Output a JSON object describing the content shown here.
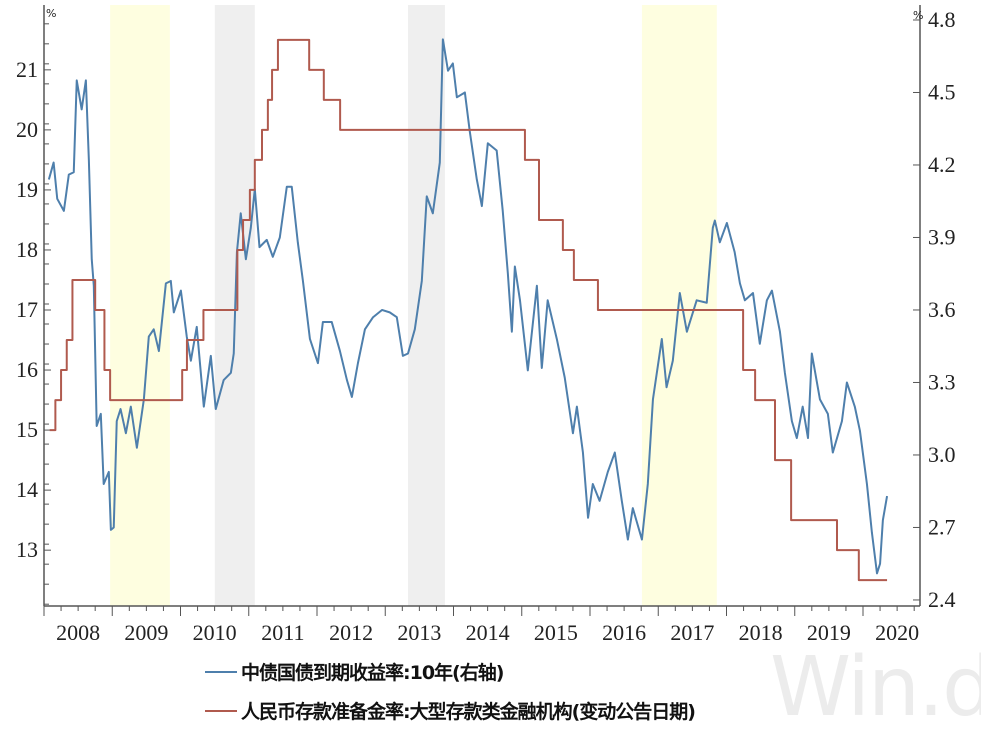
{
  "chart_data": {
    "type": "line",
    "xlim": [
      "2008-01-01",
      "2020-11-01"
    ],
    "x_tick_labels": [
      "2008",
      "2009",
      "2010",
      "2011",
      "2012",
      "2013",
      "2014",
      "2015",
      "2016",
      "2017",
      "2018",
      "2019",
      "2020"
    ],
    "left_axis": {
      "unit": "%",
      "ylim": [
        12.07,
        22.08
      ],
      "tick_labels": [
        "13",
        "14",
        "15",
        "16",
        "17",
        "18",
        "19",
        "20",
        "21"
      ]
    },
    "right_axis": {
      "unit": "%",
      "ylim": [
        2.375,
        4.862
      ],
      "tick_labels": [
        "2.4",
        "2.7",
        "3.0",
        "3.3",
        "3.6",
        "3.9",
        "4.2",
        "4.5",
        "4.8"
      ]
    },
    "grid": false,
    "legend_position": "bottom",
    "shaded_periods": [
      {
        "start": "2008-12-20",
        "end": "2009-11-05",
        "color": "#fefee0"
      },
      {
        "start": "2010-07-02",
        "end": "2011-02-03",
        "color": "#efefef"
      },
      {
        "start": "2013-05-01",
        "end": "2013-11-16",
        "color": "#efefef"
      },
      {
        "start": "2016-10-05",
        "end": "2017-11-10",
        "color": "#fefee0"
      }
    ],
    "series": [
      {
        "name": "中债国债到期收益率:10年(右轴)",
        "axis": "right",
        "color": "#4e7fac",
        "points": [
          [
            "2008-01-27",
            4.14
          ],
          [
            "2008-02-22",
            4.21
          ],
          [
            "2008-03-11",
            4.06
          ],
          [
            "2008-04-16",
            4.01
          ],
          [
            "2008-05-12",
            4.16
          ],
          [
            "2008-06-08",
            4.17
          ],
          [
            "2008-06-24",
            4.55
          ],
          [
            "2008-07-20",
            4.43
          ],
          [
            "2008-08-12",
            4.55
          ],
          [
            "2008-08-28",
            4.22
          ],
          [
            "2008-09-13",
            3.81
          ],
          [
            "2008-09-24",
            3.7
          ],
          [
            "2008-10-09",
            3.12
          ],
          [
            "2008-10-31",
            3.17
          ],
          [
            "2008-11-16",
            2.88
          ],
          [
            "2008-12-13",
            2.93
          ],
          [
            "2008-12-24",
            2.69
          ],
          [
            "2009-01-09",
            2.7
          ],
          [
            "2009-01-25",
            3.14
          ],
          [
            "2009-02-15",
            3.19
          ],
          [
            "2009-03-13",
            3.09
          ],
          [
            "2009-04-09",
            3.2
          ],
          [
            "2009-05-11",
            3.03
          ],
          [
            "2009-06-18",
            3.23
          ],
          [
            "2009-07-14",
            3.49
          ],
          [
            "2009-08-10",
            3.52
          ],
          [
            "2009-09-07",
            3.43
          ],
          [
            "2009-10-14",
            3.71
          ],
          [
            "2009-11-10",
            3.72
          ],
          [
            "2009-11-26",
            3.59
          ],
          [
            "2010-01-03",
            3.68
          ],
          [
            "2010-02-04",
            3.49
          ],
          [
            "2010-02-26",
            3.39
          ],
          [
            "2010-03-27",
            3.53
          ],
          [
            "2010-05-04",
            3.2
          ],
          [
            "2010-06-11",
            3.41
          ],
          [
            "2010-07-07",
            3.19
          ],
          [
            "2010-08-19",
            3.31
          ],
          [
            "2010-09-27",
            3.34
          ],
          [
            "2010-10-12",
            3.42
          ],
          [
            "2010-10-29",
            3.84
          ],
          [
            "2010-11-19",
            4.0
          ],
          [
            "2010-12-16",
            3.81
          ],
          [
            "2011-01-12",
            3.94
          ],
          [
            "2011-02-03",
            4.1
          ],
          [
            "2011-02-28",
            3.86
          ],
          [
            "2011-04-06",
            3.89
          ],
          [
            "2011-05-08",
            3.82
          ],
          [
            "2011-06-15",
            3.9
          ],
          [
            "2011-07-22",
            4.11
          ],
          [
            "2011-08-18",
            4.11
          ],
          [
            "2011-09-20",
            3.88
          ],
          [
            "2011-10-17",
            3.72
          ],
          [
            "2011-11-24",
            3.48
          ],
          [
            "2012-01-06",
            3.38
          ],
          [
            "2012-02-02",
            3.55
          ],
          [
            "2012-03-19",
            3.55
          ],
          [
            "2012-05-02",
            3.43
          ],
          [
            "2012-06-09",
            3.31
          ],
          [
            "2012-07-05",
            3.24
          ],
          [
            "2012-08-07",
            3.38
          ],
          [
            "2012-09-14",
            3.52
          ],
          [
            "2012-10-27",
            3.57
          ],
          [
            "2012-12-14",
            3.6
          ],
          [
            "2013-01-25",
            3.59
          ],
          [
            "2013-03-02",
            3.57
          ],
          [
            "2013-04-04",
            3.41
          ],
          [
            "2013-05-01",
            3.42
          ],
          [
            "2013-06-07",
            3.52
          ],
          [
            "2013-07-14",
            3.72
          ],
          [
            "2013-08-10",
            4.07
          ],
          [
            "2013-09-12",
            4.0
          ],
          [
            "2013-10-19",
            4.21
          ],
          [
            "2013-11-05",
            4.72
          ],
          [
            "2013-12-02",
            4.59
          ],
          [
            "2013-12-28",
            4.62
          ],
          [
            "2014-01-19",
            4.48
          ],
          [
            "2014-03-01",
            4.5
          ],
          [
            "2014-03-27",
            4.34
          ],
          [
            "2014-05-04",
            4.14
          ],
          [
            "2014-05-31",
            4.03
          ],
          [
            "2014-07-02",
            4.29
          ],
          [
            "2014-08-19",
            4.26
          ],
          [
            "2014-09-21",
            4.01
          ],
          [
            "2014-10-18",
            3.75
          ],
          [
            "2014-11-09",
            3.51
          ],
          [
            "2014-11-25",
            3.78
          ],
          [
            "2014-12-22",
            3.64
          ],
          [
            "2015-02-03",
            3.35
          ],
          [
            "2015-03-21",
            3.7
          ],
          [
            "2015-04-17",
            3.36
          ],
          [
            "2015-05-18",
            3.64
          ],
          [
            "2015-07-06",
            3.48
          ],
          [
            "2015-08-18",
            3.32
          ],
          [
            "2015-10-01",
            3.09
          ],
          [
            "2015-10-22",
            3.2
          ],
          [
            "2015-11-24",
            3.01
          ],
          [
            "2015-12-21",
            2.74
          ],
          [
            "2016-01-16",
            2.88
          ],
          [
            "2016-02-22",
            2.81
          ],
          [
            "2016-04-05",
            2.93
          ],
          [
            "2016-05-12",
            3.01
          ],
          [
            "2016-06-19",
            2.81
          ],
          [
            "2016-07-21",
            2.65
          ],
          [
            "2016-08-17",
            2.78
          ],
          [
            "2016-10-05",
            2.65
          ],
          [
            "2016-11-06",
            2.88
          ],
          [
            "2016-12-03",
            3.23
          ],
          [
            "2017-01-20",
            3.48
          ],
          [
            "2017-02-15",
            3.28
          ],
          [
            "2017-03-18",
            3.39
          ],
          [
            "2017-04-25",
            3.67
          ],
          [
            "2017-06-02",
            3.51
          ],
          [
            "2017-07-24",
            3.64
          ],
          [
            "2017-09-17",
            3.63
          ],
          [
            "2017-10-19",
            3.94
          ],
          [
            "2017-10-30",
            3.97
          ],
          [
            "2017-11-26",
            3.88
          ],
          [
            "2018-01-03",
            3.96
          ],
          [
            "2018-02-14",
            3.84
          ],
          [
            "2018-03-12",
            3.71
          ],
          [
            "2018-04-08",
            3.64
          ],
          [
            "2018-05-21",
            3.67
          ],
          [
            "2018-06-27",
            3.46
          ],
          [
            "2018-08-04",
            3.64
          ],
          [
            "2018-08-31",
            3.68
          ],
          [
            "2018-10-13",
            3.51
          ],
          [
            "2018-11-09",
            3.34
          ],
          [
            "2018-12-16",
            3.14
          ],
          [
            "2019-01-12",
            3.07
          ],
          [
            "2019-02-13",
            3.2
          ],
          [
            "2019-03-11",
            3.07
          ],
          [
            "2019-04-01",
            3.42
          ],
          [
            "2019-05-14",
            3.23
          ],
          [
            "2019-06-26",
            3.17
          ],
          [
            "2019-07-22",
            3.01
          ],
          [
            "2019-09-10",
            3.14
          ],
          [
            "2019-10-06",
            3.3
          ],
          [
            "2019-11-18",
            3.2
          ],
          [
            "2019-12-15",
            3.1
          ],
          [
            "2020-01-22",
            2.88
          ],
          [
            "2020-02-18",
            2.68
          ],
          [
            "2020-03-15",
            2.51
          ],
          [
            "2020-04-01",
            2.55
          ],
          [
            "2020-04-16",
            2.73
          ],
          [
            "2020-05-08",
            2.83
          ]
        ]
      },
      {
        "name": "人民币存款准备金率:大型存款类金融机构(变动公告日期)",
        "axis": "left",
        "step": true,
        "color": "#b05a4e",
        "points": [
          [
            "2008-02-01",
            15.0
          ],
          [
            "2008-03-01",
            15.5
          ],
          [
            "2008-04-01",
            16.0
          ],
          [
            "2008-05-01",
            16.5
          ],
          [
            "2008-06-01",
            17.5
          ],
          [
            "2008-10-01",
            17.0
          ],
          [
            "2008-11-20",
            16.0
          ],
          [
            "2008-12-20",
            15.5
          ],
          [
            "2010-01-10",
            16.0
          ],
          [
            "2010-02-05",
            16.5
          ],
          [
            "2010-05-02",
            17.0
          ],
          [
            "2010-11-01",
            18.0
          ],
          [
            "2010-12-01",
            18.5
          ],
          [
            "2011-01-07",
            19.0
          ],
          [
            "2011-02-03",
            19.5
          ],
          [
            "2011-03-11",
            20.0
          ],
          [
            "2011-04-12",
            20.5
          ],
          [
            "2011-05-04",
            21.0
          ],
          [
            "2011-06-05",
            21.5
          ],
          [
            "2011-11-20",
            21.0
          ],
          [
            "2012-02-07",
            20.5
          ],
          [
            "2012-05-03",
            20.0
          ],
          [
            "2015-01-18",
            19.5
          ],
          [
            "2015-04-02",
            18.5
          ],
          [
            "2015-08-08",
            18.0
          ],
          [
            "2015-10-06",
            17.5
          ],
          [
            "2016-02-13",
            17.0
          ],
          [
            "2018-03-29",
            16.0
          ],
          [
            "2018-06-02",
            15.5
          ],
          [
            "2018-09-17",
            14.5
          ],
          [
            "2018-12-12",
            13.5
          ],
          [
            "2019-08-14",
            13.0
          ],
          [
            "2019-12-09",
            12.5
          ],
          [
            "2020-05-08",
            12.5
          ]
        ]
      }
    ]
  },
  "legend": {
    "items": [
      {
        "label": "中债国债到期收益率:10年(右轴)",
        "color": "#4e7fac"
      },
      {
        "label": "人民币存款准备金率:大型存款类金融机构(变动公告日期)",
        "color": "#b05a4e"
      }
    ]
  },
  "watermark": "Win.d"
}
